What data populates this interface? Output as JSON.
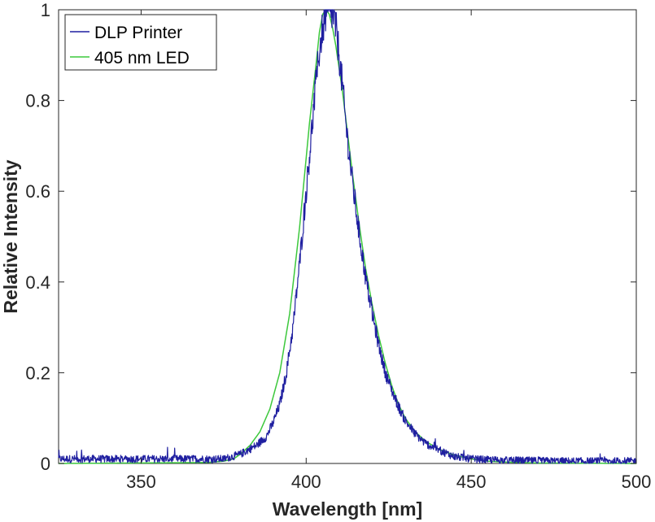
{
  "chart_data": {
    "type": "line",
    "title": "",
    "xlabel": "Wavelength [nm]",
    "ylabel": "Relative Intensity",
    "xlim": [
      325,
      500
    ],
    "ylim": [
      0,
      1
    ],
    "xticks": [
      350,
      400,
      450,
      500
    ],
    "yticks": [
      0,
      0.2,
      0.4,
      0.6,
      0.8,
      1
    ],
    "xtick_labels": [
      "350",
      "400",
      "450",
      "500"
    ],
    "ytick_labels": [
      "0",
      "0.2",
      "0.4",
      "0.6",
      "0.8",
      "1"
    ],
    "grid": false,
    "legend_position": "top-left",
    "series": [
      {
        "name": "DLP Printer",
        "color": "#1f1fa0",
        "noise_floor": 0.008,
        "x": [
          325,
          375,
          380,
          385,
          388,
          390,
          392,
          394,
          396,
          398,
          400,
          402,
          403,
          404,
          405,
          406,
          407,
          408,
          409,
          410,
          411,
          412,
          414,
          416,
          418,
          420,
          422,
          424,
          426,
          428,
          430,
          433,
          436,
          440,
          445,
          450,
          455,
          460,
          470,
          480,
          490,
          500
        ],
        "y": [
          0.01,
          0.01,
          0.02,
          0.04,
          0.06,
          0.09,
          0.13,
          0.2,
          0.3,
          0.44,
          0.6,
          0.76,
          0.84,
          0.91,
          0.96,
          0.99,
          1.0,
          0.99,
          0.96,
          0.9,
          0.83,
          0.75,
          0.62,
          0.51,
          0.41,
          0.33,
          0.26,
          0.2,
          0.16,
          0.125,
          0.095,
          0.065,
          0.045,
          0.03,
          0.015,
          0.01,
          0.008,
          0.007,
          0.006,
          0.005,
          0.005,
          0.005
        ]
      },
      {
        "name": "405 nm LED",
        "color": "#3cc83c",
        "noise_floor": 0,
        "x": [
          325,
          370,
          375,
          378,
          380,
          383,
          386,
          389,
          392,
          395,
          398,
          401,
          403,
          404,
          405,
          406,
          407,
          408,
          409,
          410,
          411,
          412,
          414,
          416,
          418,
          420,
          422,
          424,
          426,
          428,
          430,
          433,
          436,
          440,
          445,
          450,
          455,
          460,
          470,
          500
        ],
        "y": [
          0.0,
          0.002,
          0.005,
          0.01,
          0.02,
          0.04,
          0.07,
          0.12,
          0.2,
          0.33,
          0.52,
          0.75,
          0.88,
          0.95,
          0.99,
          1.0,
          0.99,
          0.96,
          0.92,
          0.87,
          0.82,
          0.76,
          0.64,
          0.53,
          0.43,
          0.35,
          0.28,
          0.22,
          0.17,
          0.13,
          0.1,
          0.07,
          0.05,
          0.032,
          0.018,
          0.01,
          0.005,
          0.003,
          0.001,
          0.0
        ]
      }
    ]
  }
}
